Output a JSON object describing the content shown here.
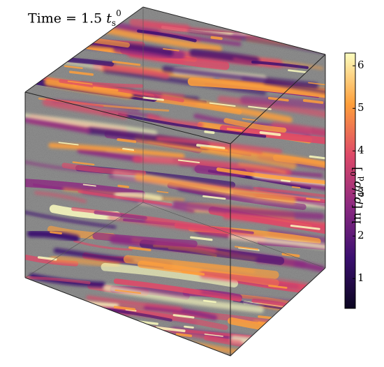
{
  "annotation": {
    "time_prefix": "Time = 1.5 ",
    "time_symbol": "t",
    "time_sub": "s",
    "time_sup": "0"
  },
  "colorbar": {
    "label_prefix": "ln [",
    "label_rho": "ρ",
    "label_sub": "d",
    "label_slash": "/",
    "label_rho2": "ρ",
    "label_sub2": "d",
    "label_sup2": "0",
    "label_suffix": "]",
    "ticks": [
      "1",
      "2",
      "3",
      "4",
      "5",
      "6"
    ],
    "range": [
      0.3,
      6.3
    ],
    "colormap": "inferno",
    "colors": [
      "#0b0620",
      "#3b0f70",
      "#8c2981",
      "#de4968",
      "#fe9f3b",
      "#fcfdbf"
    ]
  },
  "cube": {
    "face_color": "#8a8a8a",
    "edge_color": "#222222"
  }
}
